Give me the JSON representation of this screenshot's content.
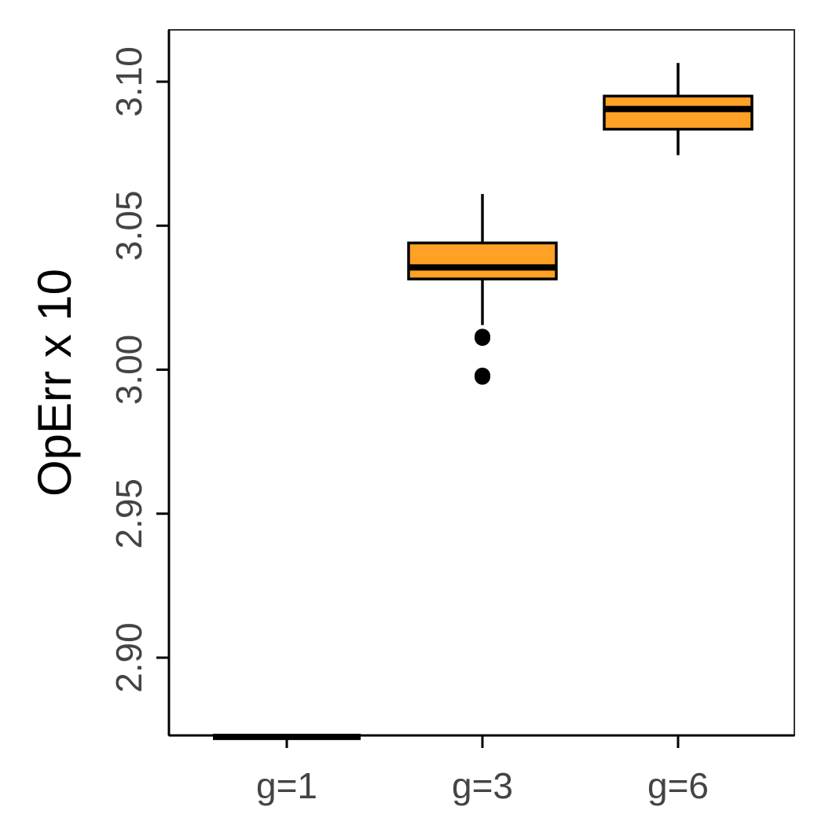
{
  "chart_data": {
    "type": "box",
    "title": "",
    "xlabel": "",
    "ylabel": "OpErr x 10",
    "ylim": [
      2.873,
      3.118
    ],
    "yticks": [
      2.9,
      2.95,
      3.0,
      3.05,
      3.1
    ],
    "ytick_labels": [
      "2.90",
      "2.95",
      "3.00",
      "3.05",
      "3.10"
    ],
    "categories": [
      "g=1",
      "g=3",
      "g=6"
    ],
    "boxes": [
      {
        "category": "g=1",
        "whisker_low": 2.8725,
        "q1": 2.8725,
        "median": 2.8725,
        "q3": 2.8725,
        "whisker_high": 2.8725,
        "outliers": []
      },
      {
        "category": "g=3",
        "whisker_low": 3.0155,
        "q1": 3.0315,
        "median": 3.0355,
        "q3": 3.044,
        "whisker_high": 3.061,
        "outliers": [
          3.011,
          3.0115,
          2.998,
          2.9975
        ]
      },
      {
        "category": "g=6",
        "whisker_low": 3.0745,
        "q1": 3.0835,
        "median": 3.0905,
        "q3": 3.095,
        "whisker_high": 3.1065,
        "outliers": []
      }
    ],
    "box_color": "#FFA124",
    "grid": false,
    "legend": "none"
  }
}
